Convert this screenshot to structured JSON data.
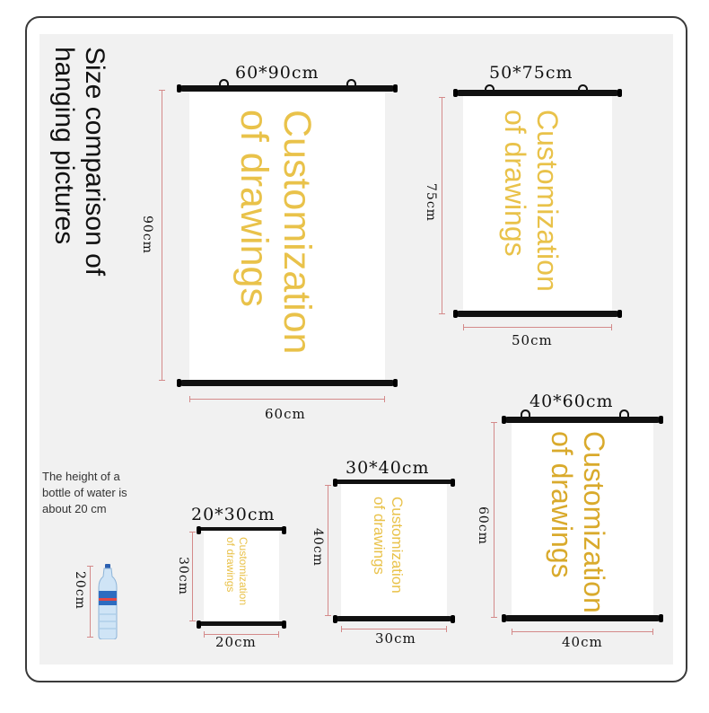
{
  "title": [
    "Size comparison of",
    "hanging pictures"
  ],
  "note": [
    "The height of a",
    "bottle of water is",
    "about 20 cm"
  ],
  "bottle_label": "20cm",
  "poster_text": [
    "Customization",
    "of drawings"
  ],
  "posters": [
    {
      "size": "60*90cm",
      "width": "60cm",
      "height": "90cm"
    },
    {
      "size": "50*75cm",
      "width": "50cm",
      "height": "75cm"
    },
    {
      "size": "40*60cm",
      "width": "40cm",
      "height": "60cm"
    },
    {
      "size": "30*40cm",
      "width": "30cm",
      "height": "40cm"
    },
    {
      "size": "20*30cm",
      "width": "20cm",
      "height": "30cm"
    }
  ],
  "colors": {
    "text_light": "#e9c24a",
    "text_gold": "#d9aa2c",
    "rod": "#111111",
    "dim_line": "#d48a8a",
    "panel": "#f1f1f1"
  }
}
